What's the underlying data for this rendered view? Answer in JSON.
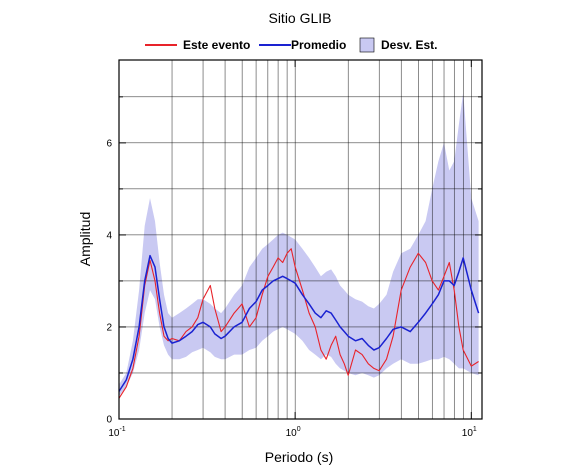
{
  "chart_data": {
    "type": "line",
    "title": "Sitio GLIB",
    "xlabel": "Periodo (s)",
    "ylabel": "Amplitud",
    "x_scale": "log",
    "xlim": [
      0.1,
      11.5
    ],
    "ylim": [
      0,
      7.8
    ],
    "x_ticks": [
      {
        "value": 0.1,
        "base": "10",
        "exp": "-1"
      },
      {
        "value": 1,
        "base": "10",
        "exp": "0"
      },
      {
        "value": 10,
        "base": "10",
        "exp": "1"
      }
    ],
    "y_ticks": [
      0,
      2,
      4,
      6
    ],
    "grid": true,
    "legend_position": "top",
    "colors": {
      "este_evento": "#e8232a",
      "promedio": "#1a22d1",
      "desv_est": "#c9c9f2"
    },
    "legend": [
      {
        "key": "este_evento",
        "label": "Este evento",
        "kind": "line"
      },
      {
        "key": "promedio",
        "label": "Promedio",
        "kind": "line"
      },
      {
        "key": "desv_est",
        "label": "Desv. Est.",
        "kind": "box"
      }
    ],
    "series": [
      {
        "name": "Este evento",
        "x": [
          0.1,
          0.11,
          0.12,
          0.13,
          0.14,
          0.15,
          0.16,
          0.17,
          0.18,
          0.19,
          0.2,
          0.22,
          0.24,
          0.26,
          0.28,
          0.3,
          0.33,
          0.35,
          0.38,
          0.4,
          0.45,
          0.5,
          0.55,
          0.6,
          0.65,
          0.7,
          0.75,
          0.8,
          0.85,
          0.9,
          0.95,
          1.0,
          1.1,
          1.2,
          1.3,
          1.4,
          1.5,
          1.6,
          1.7,
          1.8,
          1.9,
          2.0,
          2.2,
          2.4,
          2.6,
          2.8,
          3.0,
          3.3,
          3.6,
          4.0,
          4.5,
          5.0,
          5.5,
          6.0,
          6.5,
          7.0,
          7.5,
          8.0,
          8.5,
          9.0,
          10.0,
          11.0
        ],
        "values": [
          0.45,
          0.7,
          1.1,
          1.8,
          2.9,
          3.45,
          3.0,
          2.3,
          1.8,
          1.7,
          1.75,
          1.7,
          1.9,
          2.0,
          2.2,
          2.6,
          2.9,
          2.4,
          1.9,
          2.0,
          2.3,
          2.5,
          2.0,
          2.2,
          2.7,
          3.1,
          3.3,
          3.5,
          3.4,
          3.6,
          3.7,
          3.3,
          2.8,
          2.3,
          2.0,
          1.5,
          1.3,
          1.6,
          1.8,
          1.4,
          1.2,
          0.95,
          1.5,
          1.4,
          1.2,
          1.1,
          1.05,
          1.3,
          1.8,
          2.8,
          3.3,
          3.6,
          3.4,
          3.0,
          2.8,
          3.1,
          3.4,
          2.8,
          2.0,
          1.5,
          1.15,
          1.25
        ]
      },
      {
        "name": "Promedio",
        "x": [
          0.1,
          0.11,
          0.12,
          0.13,
          0.14,
          0.15,
          0.16,
          0.17,
          0.18,
          0.19,
          0.2,
          0.22,
          0.24,
          0.26,
          0.28,
          0.3,
          0.33,
          0.35,
          0.38,
          0.4,
          0.45,
          0.5,
          0.55,
          0.6,
          0.65,
          0.7,
          0.75,
          0.8,
          0.85,
          0.9,
          0.95,
          1.0,
          1.1,
          1.2,
          1.3,
          1.4,
          1.5,
          1.6,
          1.7,
          1.8,
          1.9,
          2.0,
          2.2,
          2.4,
          2.6,
          2.8,
          3.0,
          3.3,
          3.6,
          4.0,
          4.5,
          5.0,
          5.5,
          6.0,
          6.5,
          7.0,
          7.5,
          8.0,
          8.5,
          9.0,
          10.0,
          11.0
        ],
        "values": [
          0.6,
          0.85,
          1.3,
          2.0,
          3.0,
          3.55,
          3.3,
          2.6,
          2.0,
          1.75,
          1.65,
          1.7,
          1.8,
          1.9,
          2.05,
          2.1,
          2.0,
          1.85,
          1.75,
          1.8,
          2.0,
          2.1,
          2.4,
          2.55,
          2.8,
          2.9,
          3.0,
          3.05,
          3.1,
          3.05,
          3.0,
          2.95,
          2.7,
          2.5,
          2.3,
          2.2,
          2.35,
          2.3,
          2.15,
          2.0,
          1.9,
          1.8,
          1.7,
          1.75,
          1.6,
          1.5,
          1.55,
          1.75,
          1.95,
          2.0,
          1.9,
          2.1,
          2.3,
          2.5,
          2.7,
          3.0,
          3.0,
          2.9,
          3.2,
          3.5,
          2.8,
          2.3
        ]
      }
    ],
    "band": {
      "name": "Desv. Est.",
      "x": [
        0.1,
        0.11,
        0.12,
        0.13,
        0.14,
        0.15,
        0.16,
        0.17,
        0.18,
        0.19,
        0.2,
        0.22,
        0.24,
        0.26,
        0.28,
        0.3,
        0.33,
        0.35,
        0.38,
        0.4,
        0.45,
        0.5,
        0.55,
        0.6,
        0.65,
        0.7,
        0.75,
        0.8,
        0.85,
        0.9,
        0.95,
        1.0,
        1.1,
        1.2,
        1.3,
        1.4,
        1.5,
        1.6,
        1.7,
        1.8,
        1.9,
        2.0,
        2.2,
        2.4,
        2.6,
        2.8,
        3.0,
        3.3,
        3.6,
        4.0,
        4.5,
        5.0,
        5.5,
        6.0,
        6.5,
        7.0,
        7.5,
        8.0,
        8.5,
        9.0,
        10.0,
        11.0
      ],
      "lower": [
        0.5,
        0.7,
        1.0,
        1.5,
        2.3,
        2.8,
        2.6,
        2.0,
        1.6,
        1.4,
        1.3,
        1.3,
        1.35,
        1.45,
        1.5,
        1.55,
        1.45,
        1.35,
        1.3,
        1.3,
        1.4,
        1.4,
        1.5,
        1.55,
        1.7,
        1.8,
        1.9,
        1.95,
        2.0,
        1.95,
        1.9,
        1.85,
        1.7,
        1.5,
        1.4,
        1.3,
        1.4,
        1.35,
        1.2,
        1.1,
        1.05,
        1.0,
        0.95,
        1.0,
        0.95,
        0.9,
        0.95,
        1.1,
        1.2,
        1.3,
        1.2,
        1.2,
        1.25,
        1.3,
        1.3,
        1.35,
        1.3,
        1.2,
        1.1,
        1.1,
        1.0,
        0.95
      ],
      "upper": [
        0.75,
        1.0,
        1.7,
        2.8,
        4.2,
        4.8,
        4.3,
        3.4,
        2.7,
        2.3,
        2.2,
        2.3,
        2.4,
        2.5,
        2.6,
        2.6,
        2.5,
        2.4,
        2.3,
        2.4,
        2.7,
        2.9,
        3.3,
        3.5,
        3.7,
        3.8,
        3.9,
        4.0,
        4.05,
        4.0,
        3.95,
        3.9,
        3.7,
        3.5,
        3.3,
        3.1,
        3.2,
        3.25,
        3.1,
        2.9,
        2.8,
        2.7,
        2.6,
        2.55,
        2.45,
        2.4,
        2.5,
        2.7,
        3.2,
        3.6,
        3.7,
        4.0,
        4.3,
        5.0,
        5.6,
        6.0,
        5.4,
        5.6,
        6.4,
        7.1,
        4.8,
        4.3
      ]
    }
  }
}
